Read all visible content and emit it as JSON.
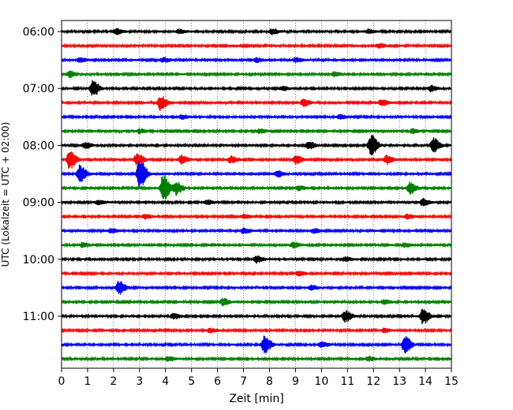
{
  "chart_data": {
    "type": "line",
    "title": "",
    "xlabel": "Zeit  [min]",
    "ylabel": "UTC (Lokalzeit = UTC + 02:00)",
    "xlim": [
      0,
      15
    ],
    "x_ticks": [
      0,
      1,
      2,
      3,
      4,
      5,
      6,
      7,
      8,
      9,
      10,
      11,
      12,
      13,
      14,
      15
    ],
    "x_tick_labels": [
      "0",
      "1",
      "2",
      "3",
      "4",
      "5",
      "6",
      "7",
      "8",
      "9",
      "10",
      "11",
      "12",
      "13",
      "14",
      "15"
    ],
    "y_tick_labels": [
      "06:00",
      "07:00",
      "08:00",
      "09:00",
      "10:00",
      "11:00"
    ],
    "grid": "vertical-dotted",
    "trace_colors": [
      "#000000",
      "#ff0000",
      "#0000ff",
      "#008000"
    ],
    "series": [
      {
        "start": "06:00",
        "events": [
          {
            "t": 2.1,
            "a": 0.4
          },
          {
            "t": 4.5,
            "a": 0.3
          },
          {
            "t": 8.1,
            "a": 0.4
          },
          {
            "t": 11.8,
            "a": 0.3
          }
        ]
      },
      {
        "start": "06:15",
        "events": [
          {
            "t": 12.2,
            "a": 0.3
          }
        ]
      },
      {
        "start": "06:30",
        "events": [
          {
            "t": 0.7,
            "a": 0.3
          },
          {
            "t": 3.9,
            "a": 0.3
          },
          {
            "t": 7.5,
            "a": 0.3
          },
          {
            "t": 9.0,
            "a": 0.3
          }
        ]
      },
      {
        "start": "06:45",
        "events": [
          {
            "t": 0.3,
            "a": 0.4
          },
          {
            "t": 10.5,
            "a": 0.3
          }
        ]
      },
      {
        "start": "07:00",
        "events": [
          {
            "t": 1.2,
            "a": 1.1
          },
          {
            "t": 8.5,
            "a": 0.3
          },
          {
            "t": 14.2,
            "a": 0.4
          }
        ]
      },
      {
        "start": "07:15",
        "events": [
          {
            "t": 3.8,
            "a": 1.0
          },
          {
            "t": 9.3,
            "a": 0.5
          },
          {
            "t": 12.3,
            "a": 0.4
          }
        ]
      },
      {
        "start": "07:30",
        "events": [
          {
            "t": 4.6,
            "a": 0.3
          },
          {
            "t": 10.7,
            "a": 0.3
          }
        ]
      },
      {
        "start": "07:45",
        "events": [
          {
            "t": 3.0,
            "a": 0.3
          },
          {
            "t": 7.6,
            "a": 0.3
          },
          {
            "t": 13.5,
            "a": 0.3
          }
        ]
      },
      {
        "start": "08:00",
        "events": [
          {
            "t": 0.9,
            "a": 0.4
          },
          {
            "t": 9.5,
            "a": 0.5
          },
          {
            "t": 11.9,
            "a": 1.5
          },
          {
            "t": 14.3,
            "a": 1.0
          }
        ]
      },
      {
        "start": "08:15",
        "events": [
          {
            "t": 0.3,
            "a": 1.3
          },
          {
            "t": 2.9,
            "a": 0.9
          },
          {
            "t": 4.6,
            "a": 0.6
          },
          {
            "t": 6.5,
            "a": 0.5
          },
          {
            "t": 9.0,
            "a": 0.6
          },
          {
            "t": 12.5,
            "a": 0.6
          }
        ]
      },
      {
        "start": "08:30",
        "events": [
          {
            "t": 0.7,
            "a": 1.2
          },
          {
            "t": 3.0,
            "a": 2.2
          },
          {
            "t": 8.3,
            "a": 0.4
          }
        ]
      },
      {
        "start": "08:45",
        "events": [
          {
            "t": 3.9,
            "a": 1.9
          },
          {
            "t": 4.4,
            "a": 0.9
          },
          {
            "t": 9.1,
            "a": 0.3
          },
          {
            "t": 13.4,
            "a": 0.8
          }
        ]
      },
      {
        "start": "09:00",
        "events": [
          {
            "t": 1.4,
            "a": 0.3
          },
          {
            "t": 5.6,
            "a": 0.3
          },
          {
            "t": 13.9,
            "a": 0.5
          }
        ]
      },
      {
        "start": "09:15",
        "events": [
          {
            "t": 3.2,
            "a": 0.3
          },
          {
            "t": 7.0,
            "a": 0.3
          },
          {
            "t": 13.3,
            "a": 0.3
          }
        ]
      },
      {
        "start": "09:30",
        "events": [
          {
            "t": 1.9,
            "a": 0.3
          },
          {
            "t": 7.0,
            "a": 0.4
          },
          {
            "t": 9.7,
            "a": 0.3
          }
        ]
      },
      {
        "start": "09:45",
        "events": [
          {
            "t": 0.8,
            "a": 0.3
          },
          {
            "t": 8.9,
            "a": 0.4
          },
          {
            "t": 13.2,
            "a": 0.3
          }
        ]
      },
      {
        "start": "10:00",
        "events": [
          {
            "t": 7.5,
            "a": 0.5
          },
          {
            "t": 10.9,
            "a": 0.3
          }
        ]
      },
      {
        "start": "10:15",
        "events": [
          {
            "t": 9.1,
            "a": 0.3
          }
        ]
      },
      {
        "start": "10:30",
        "events": [
          {
            "t": 2.2,
            "a": 0.9
          },
          {
            "t": 9.6,
            "a": 0.3
          }
        ]
      },
      {
        "start": "10:45",
        "events": [
          {
            "t": 6.2,
            "a": 0.5
          },
          {
            "t": 12.4,
            "a": 0.3
          }
        ]
      },
      {
        "start": "11:00",
        "events": [
          {
            "t": 4.3,
            "a": 0.4
          },
          {
            "t": 10.9,
            "a": 0.8
          },
          {
            "t": 13.9,
            "a": 1.1
          }
        ]
      },
      {
        "start": "11:15",
        "events": [
          {
            "t": 5.7,
            "a": 0.3
          },
          {
            "t": 12.4,
            "a": 0.3
          }
        ]
      },
      {
        "start": "11:30",
        "events": [
          {
            "t": 7.8,
            "a": 1.2
          },
          {
            "t": 10.0,
            "a": 0.4
          },
          {
            "t": 13.2,
            "a": 1.2
          }
        ]
      },
      {
        "start": "11:45",
        "events": [
          {
            "t": 4.1,
            "a": 0.3
          },
          {
            "t": 11.8,
            "a": 0.3
          }
        ]
      }
    ]
  }
}
